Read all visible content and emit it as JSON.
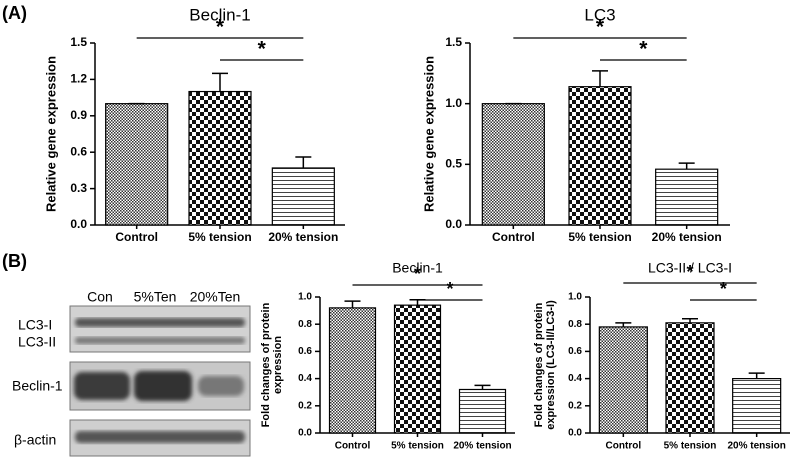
{
  "panel_labels": [
    "(A)",
    "(B)"
  ],
  "blot": {
    "lanes": [
      "Con",
      "5%Ten",
      "20%Ten"
    ],
    "bands": [
      "LC3-I",
      "LC3-II",
      "Beclin-1",
      "β-actin"
    ]
  },
  "chart_data": [
    {
      "type": "bar",
      "title": "Beclin-1",
      "y_label": [
        "Relative gene expression"
      ],
      "categories": [
        "Control",
        "5% tension",
        "20% tension"
      ],
      "values": [
        1.0,
        1.1,
        0.47
      ],
      "errors": [
        0,
        0.15,
        0.09
      ],
      "ylim": [
        0,
        1.5
      ],
      "yticks": [
        {
          "value": 0,
          "label": "0.0"
        },
        0.3,
        0.6,
        0.9,
        1.2,
        1.5
      ],
      "annotations": [
        {
          "text": "*",
          "between": [
            "Control",
            "20% tension"
          ]
        },
        {
          "text": "*",
          "between": [
            "5% tension",
            "20% tension"
          ]
        }
      ]
    },
    {
      "type": "bar",
      "title": "LC3",
      "y_label": [
        "Relative gene expression"
      ],
      "categories": [
        "Control",
        "5% tension",
        "20% tension"
      ],
      "values": [
        1.0,
        1.14,
        0.46
      ],
      "errors": [
        0,
        0.13,
        0.05
      ],
      "ylim": [
        0,
        1.5
      ],
      "yticks": [
        {
          "value": 0,
          "label": "0.0"
        },
        0.5,
        {
          "value": 1,
          "label": "1.0"
        },
        1.5
      ],
      "annotations": [
        {
          "text": "*",
          "between": [
            "Control",
            "20% tension"
          ]
        },
        {
          "text": "*",
          "between": [
            "5% tension",
            "20% tension"
          ]
        }
      ]
    },
    {
      "type": "bar",
      "title": "Beclin-1",
      "y_label": [
        "Fold changes of protein",
        "expression"
      ],
      "categories": [
        "Control",
        "5% tension",
        "20% tension"
      ],
      "values": [
        0.92,
        0.94,
        0.32
      ],
      "errors": [
        0.05,
        0.04,
        0.03
      ],
      "ylim": [
        0,
        1
      ],
      "yticks": [
        {
          "value": 0,
          "label": "0.0"
        },
        0.2,
        0.4,
        0.6,
        0.8,
        {
          "value": 1,
          "label": "1.0"
        }
      ],
      "annotations": [
        {
          "text": "*",
          "between": [
            "Control",
            "20% tension"
          ]
        },
        {
          "text": "*",
          "between": [
            "5% tension",
            "20% tension"
          ]
        }
      ]
    },
    {
      "type": "bar",
      "title": "LC3-II / LC3-I",
      "y_label": [
        "Fold changes of protein",
        "expression (LC3-II/LC3-I)"
      ],
      "categories": [
        "Control",
        "5% tension",
        "20% tension"
      ],
      "values": [
        0.78,
        0.81,
        0.4
      ],
      "errors": [
        0.03,
        0.03,
        0.04
      ],
      "ylim": [
        0,
        1
      ],
      "yticks": [
        {
          "value": 0,
          "label": "0.0"
        },
        0.2,
        0.4,
        0.6,
        0.8,
        {
          "value": 1,
          "label": "1.0"
        }
      ],
      "annotations": [
        {
          "text": "*",
          "between": [
            "Control",
            "20% tension"
          ]
        },
        {
          "text": "*",
          "between": [
            "5% tension",
            "20% tension"
          ]
        }
      ]
    }
  ]
}
